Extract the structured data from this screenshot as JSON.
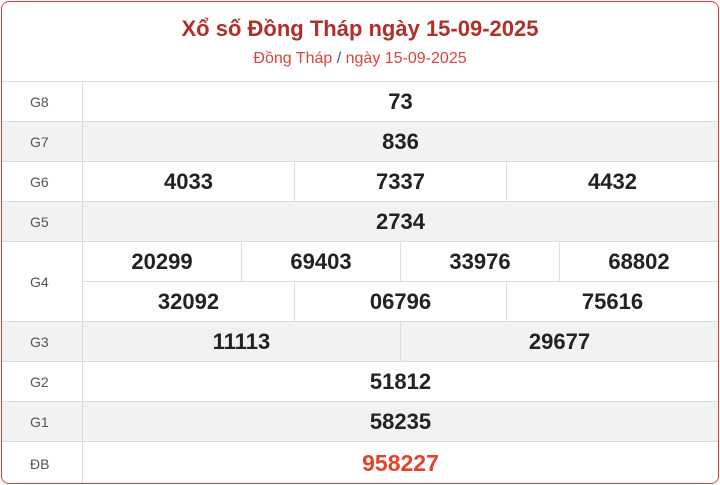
{
  "header": {
    "title": "Xổ số Đồng Tháp ngày 15-09-2025",
    "breadcrumb_province": "Đồng Tháp",
    "breadcrumb_sep": "/",
    "breadcrumb_date": "ngày 15-09-2025"
  },
  "prizes": [
    {
      "label": "G8",
      "lines": [
        [
          "73"
        ]
      ]
    },
    {
      "label": "G7",
      "lines": [
        [
          "836"
        ]
      ]
    },
    {
      "label": "G6",
      "lines": [
        [
          "4033",
          "7337",
          "4432"
        ]
      ]
    },
    {
      "label": "G5",
      "lines": [
        [
          "2734"
        ]
      ]
    },
    {
      "label": "G4",
      "lines": [
        [
          "20299",
          "69403",
          "33976",
          "68802"
        ],
        [
          "32092",
          "06796",
          "75616"
        ]
      ]
    },
    {
      "label": "G3",
      "lines": [
        [
          "11113",
          "29677"
        ]
      ]
    },
    {
      "label": "G2",
      "lines": [
        [
          "51812"
        ]
      ]
    },
    {
      "label": "G1",
      "lines": [
        [
          "58235"
        ]
      ]
    },
    {
      "label": "ĐB",
      "lines": [
        [
          "958227"
        ]
      ]
    }
  ],
  "colors": {
    "accent": "#e0413a",
    "title": "#b0302a",
    "special": "#e8412b"
  }
}
